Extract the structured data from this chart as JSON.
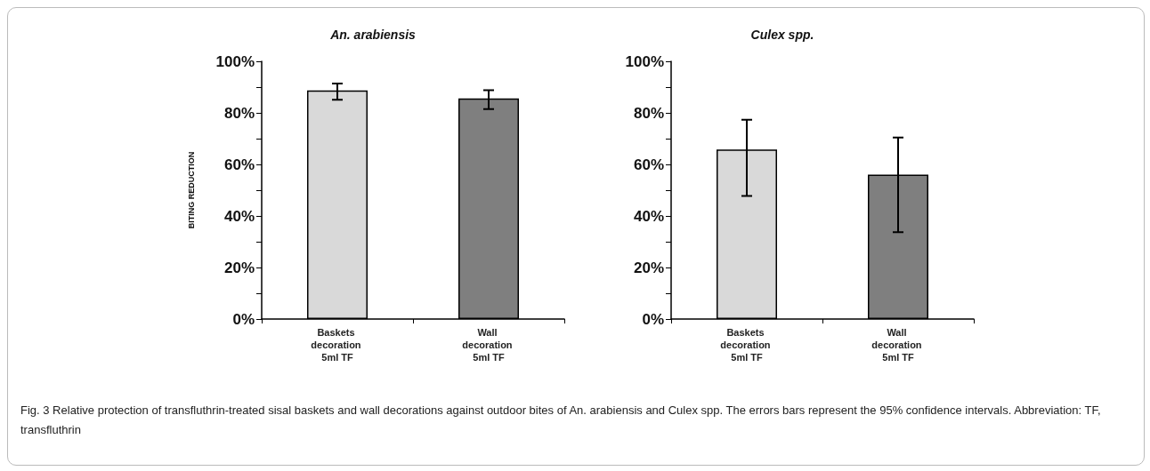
{
  "chart_data": [
    {
      "type": "bar",
      "title": "An. arabiensis",
      "ylabel": "BITING REDUCTION",
      "categories": [
        "Baskets decoration 5ml TF",
        "Wall decoration 5ml TF"
      ],
      "values": [
        88.7,
        85.6
      ],
      "colors": [
        "#d9d9d9",
        "#7f7f7f"
      ],
      "errors": [
        [
          85.1,
          91.4
        ],
        [
          81.5,
          88.8
        ]
      ],
      "ylim": [
        0,
        100
      ],
      "yticks": [
        {
          "value": 0,
          "label": "0%"
        },
        {
          "value": 10,
          "label": null
        },
        {
          "value": 20,
          "label": "20%"
        },
        {
          "value": 30,
          "label": null
        },
        {
          "value": 40,
          "label": "40%"
        },
        {
          "value": 50,
          "label": null
        },
        {
          "value": 60,
          "label": "60%"
        },
        {
          "value": 70,
          "label": null
        },
        {
          "value": 80,
          "label": "80%"
        },
        {
          "value": 90,
          "label": null
        },
        {
          "value": 100,
          "label": "100%"
        }
      ],
      "grid": false
    },
    {
      "type": "bar",
      "title": "Culex spp.",
      "categories": [
        "Baskets decoration 5ml TF",
        "Wall decoration 5ml TF"
      ],
      "values": [
        65.8,
        56
      ],
      "colors": [
        "#d9d9d9",
        "#7f7f7f"
      ],
      "errors": [
        [
          47.8,
          77.3
        ],
        [
          33.7,
          70.4
        ]
      ],
      "ylim": [
        0,
        100
      ],
      "yticks": [
        {
          "value": 0,
          "label": "0%"
        },
        {
          "value": 10,
          "label": null
        },
        {
          "value": 20,
          "label": "20%"
        },
        {
          "value": 30,
          "label": null
        },
        {
          "value": 40,
          "label": "40%"
        },
        {
          "value": 50,
          "label": null
        },
        {
          "value": 60,
          "label": "60%"
        },
        {
          "value": 70,
          "label": null
        },
        {
          "value": 80,
          "label": "80%"
        },
        {
          "value": 90,
          "label": null
        },
        {
          "value": 100,
          "label": "100%"
        }
      ],
      "grid": false,
      "annotations": [
        "Fig. 3 Relative protection of transfluthrin-treated sisal baskets and wall decorations against outdoor bites of An. arabiensis and Culex spp. The errors bars represent the 95% confidence intervals. Abbreviation: TF, transfluthrin"
      ]
    }
  ]
}
